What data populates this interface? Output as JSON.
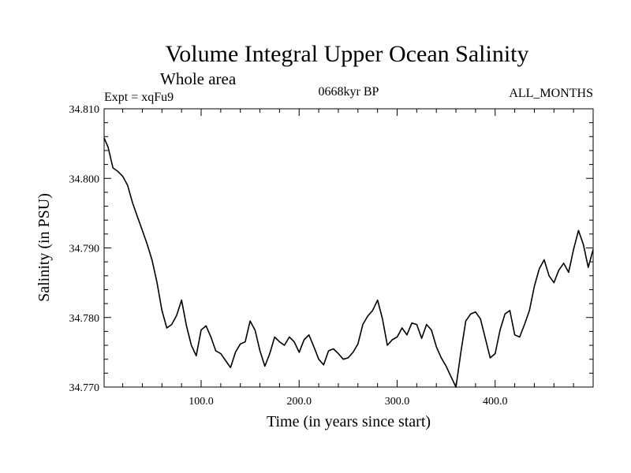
{
  "chart_data": {
    "type": "line",
    "title": "Volume Integral Upper Ocean Salinity",
    "subtitle": "Whole area",
    "left_label": "Expt = xqFu9",
    "center_label": "0668kyr BP",
    "right_label": "ALL_MONTHS",
    "xlabel": "Time (in years since start)",
    "ylabel": "Salinity (in PSU)",
    "xlim": [
      1,
      500
    ],
    "ylim": [
      34.77,
      34.81
    ],
    "x_ticks": [
      100,
      200,
      300,
      400
    ],
    "x_tick_labels": [
      "100.0",
      "200.0",
      "300.0",
      "400.0"
    ],
    "y_ticks": [
      34.77,
      34.78,
      34.79,
      34.8,
      34.81
    ],
    "y_tick_labels": [
      "34.770",
      "34.780",
      "34.790",
      "34.800",
      "34.810"
    ],
    "grid": false,
    "series": [
      {
        "name": "Salinity",
        "x": [
          1,
          5,
          10,
          15,
          20,
          25,
          30,
          35,
          40,
          45,
          50,
          55,
          60,
          65,
          70,
          75,
          80,
          85,
          90,
          95,
          100,
          105,
          110,
          115,
          120,
          125,
          130,
          135,
          140,
          145,
          150,
          155,
          160,
          165,
          170,
          175,
          180,
          185,
          190,
          195,
          200,
          205,
          210,
          215,
          220,
          225,
          230,
          235,
          240,
          245,
          250,
          255,
          260,
          265,
          270,
          275,
          280,
          285,
          290,
          295,
          300,
          305,
          310,
          315,
          320,
          325,
          330,
          335,
          340,
          345,
          350,
          355,
          360,
          365,
          370,
          375,
          380,
          385,
          390,
          395,
          400,
          405,
          410,
          415,
          420,
          425,
          430,
          435,
          440,
          445,
          450,
          455,
          460,
          465,
          470,
          475,
          480,
          485,
          490,
          495,
          500
        ],
        "y": [
          34.8058,
          34.8045,
          34.8015,
          34.801,
          34.8003,
          34.799,
          34.7965,
          34.7945,
          34.7925,
          34.7905,
          34.7882,
          34.785,
          34.781,
          34.7785,
          34.779,
          34.7803,
          34.7825,
          34.7788,
          34.776,
          34.7745,
          34.7782,
          34.7788,
          34.7772,
          34.7752,
          34.7748,
          34.7738,
          34.7728,
          34.775,
          34.7762,
          34.7765,
          34.7795,
          34.7782,
          34.7752,
          34.773,
          34.7748,
          34.7772,
          34.7765,
          34.776,
          34.7772,
          34.7765,
          34.775,
          34.7768,
          34.7775,
          34.7758,
          34.774,
          34.7732,
          34.7752,
          34.7755,
          34.7748,
          34.774,
          34.7742,
          34.775,
          34.7762,
          34.779,
          34.7802,
          34.781,
          34.7825,
          34.7798,
          34.776,
          34.7768,
          34.7772,
          34.7785,
          34.7775,
          34.7792,
          34.779,
          34.777,
          34.779,
          34.7782,
          34.7758,
          34.7742,
          34.773,
          34.7715,
          34.77,
          34.775,
          34.7795,
          34.7805,
          34.7808,
          34.7798,
          34.777,
          34.7742,
          34.7748,
          34.7782,
          34.7805,
          34.781,
          34.7775,
          34.7772,
          34.779,
          34.781,
          34.7845,
          34.787,
          34.7883,
          34.786,
          34.785,
          34.7868,
          34.7878,
          34.7865,
          34.7898,
          34.7925,
          34.7905,
          34.7872,
          34.7898
        ]
      }
    ]
  }
}
